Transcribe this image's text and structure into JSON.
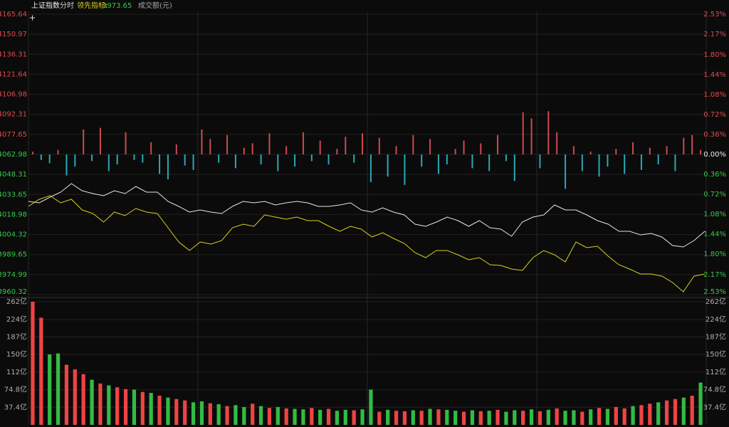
{
  "chart_data": [
    {
      "type": "line",
      "title": "上证指数",
      "period": "分时",
      "indicator_label": "领先指标:",
      "indicator_value": 3973.65,
      "ylim": [
        3960.32,
        4165.64
      ],
      "yticks": [
        4165.64,
        4150.97,
        4136.31,
        4121.64,
        4106.98,
        4092.31,
        4077.65,
        4062.98,
        4048.31,
        4033.65,
        4018.98,
        4004.32,
        3989.65,
        3974.99,
        3960.32
      ],
      "y2lim": [
        -2.53,
        2.53
      ],
      "y2ticks": [
        {
          "value": 2.53,
          "label": "2.53%"
        },
        {
          "value": 2.17,
          "label": "2.17%"
        },
        {
          "value": 1.8,
          "label": "1.80%"
        },
        {
          "value": 1.44,
          "label": "1.44%"
        },
        {
          "value": 1.08,
          "label": "1.08%"
        },
        {
          "value": 0.72,
          "label": "0.72%"
        },
        {
          "value": 0.36,
          "label": "0.36%"
        },
        {
          "value": 0,
          "label": "0.00%"
        },
        {
          "value": -0.36,
          "label": "0.36%"
        },
        {
          "value": -0.72,
          "label": "0.72%"
        },
        {
          "value": -1.08,
          "label": "1.08%"
        },
        {
          "value": -1.44,
          "label": "1.44%"
        },
        {
          "value": -1.8,
          "label": "1.80%"
        },
        {
          "value": -2.17,
          "label": "2.17%"
        },
        {
          "value": -2.53,
          "label": "2.53%"
        }
      ],
      "tick_up_color": "#e5484d",
      "tick_down_color": "#35c94a",
      "grid": true,
      "series": [
        {
          "color": "#e6e6e6",
          "values": [
            4028.59,
            4027.55,
            4031.72,
            4035.36,
            4041.62,
            4036.41,
            4034.32,
            4032.76,
            4036.41,
            4034.32,
            4039.53,
            4035.36,
            4035.36,
            4028.59,
            4024.94,
            4020.77,
            4022.34,
            4020.77,
            4019.73,
            4024.94,
            4028.59,
            4027.55,
            4028.59,
            4025.98,
            4027.55,
            4028.59,
            4027.55,
            4024.94,
            4024.94,
            4025.98,
            4027.55,
            4022.34,
            4020.77,
            4023.9,
            4020.77,
            4018.69,
            4011.91,
            4010.35,
            4013.48,
            4017.12,
            4014.52,
            4010.35,
            4014.52,
            4009.31,
            4008.27,
            4003.05,
            4013.48,
            4017.12,
            4018.69,
            4025.98,
            4022.34,
            4022.34,
            4018.69,
            4014.52,
            4011.91,
            4006.7,
            4006.7,
            4004.1,
            4005.14,
            4002.53,
            3996.28,
            3995.24,
            3999.93,
            4006.7
          ]
        },
        {
          "color": "#d8d21c",
          "values": [
            4024.94,
            4030.15,
            4032.76,
            4027.55,
            4030.15,
            4022.34,
            4019.73,
            4013.48,
            4020.77,
            4018.17,
            4023.38,
            4020.77,
            4019.73,
            4009.31,
            3998.89,
            3992.63,
            3998.89,
            3997.32,
            3999.93,
            4009.31,
            4011.91,
            4010.35,
            4018.69,
            4017.12,
            4015.56,
            4017.12,
            4014.52,
            4014.52,
            4010.35,
            4006.7,
            4010.35,
            4008.27,
            4002.53,
            4005.66,
            4001.49,
            3997.84,
            3991.07,
            3987.42,
            3992.63,
            3992.63,
            3989.51,
            3985.86,
            3987.42,
            3982.21,
            3981.69,
            3979.08,
            3978.04,
            3987.42,
            3992.63,
            3989.51,
            3984.3,
            3998.89,
            3994.72,
            3995.76,
            3988.46,
            3982.21,
            3979.08,
            3975.44,
            3975.44,
            3973.87,
            3969.18,
            3962.41,
            3973.87,
            3975.44
          ]
        },
        {
          "type": "bar",
          "axis": "y2",
          "up_color": "#d0494e",
          "down_color": "#2aa8b8",
          "values": [
            0.05,
            -0.1,
            -0.16,
            0.08,
            -0.38,
            -0.22,
            0.45,
            -0.12,
            0.48,
            -0.3,
            -0.18,
            0.4,
            -0.1,
            -0.15,
            0.22,
            -0.35,
            -0.45,
            0.18,
            -0.2,
            -0.28,
            0.45,
            0.28,
            -0.15,
            0.35,
            -0.25,
            0.12,
            0.2,
            -0.18,
            0.38,
            -0.3,
            0.15,
            -0.22,
            0.4,
            -0.12,
            0.25,
            -0.18,
            0.1,
            0.32,
            -0.15,
            0.38,
            -0.5,
            0.3,
            -0.4,
            0.15,
            -0.55,
            0.35,
            -0.22,
            0.28,
            -0.35,
            -0.18,
            0.1,
            0.25,
            -0.25,
            0.2,
            -0.3,
            0.35,
            -0.12,
            -0.48,
            0.76,
            0.65,
            -0.25,
            0.78,
            0.4,
            -0.62,
            0.15,
            -0.3,
            0.05,
            -0.4,
            -0.22,
            0.1,
            -0.35,
            0.22,
            -0.28,
            0.12,
            -0.18,
            0.15,
            -0.3,
            0.3,
            0.35,
            0.08
          ]
        }
      ]
    },
    {
      "type": "bar",
      "title": "成交额(元)",
      "ylim": [
        0,
        262
      ],
      "yticks": [
        {
          "value": 262,
          "label": "262亿"
        },
        {
          "value": 224,
          "label": "224亿"
        },
        {
          "value": 187,
          "label": "187亿"
        },
        {
          "value": 150,
          "label": "150亿"
        },
        {
          "value": 112,
          "label": "112亿"
        },
        {
          "value": 74.8,
          "label": "74.8亿"
        },
        {
          "value": 37.4,
          "label": "37.4亿"
        }
      ],
      "tick_color": "#b0b0b0",
      "values": [
        262,
        228,
        150,
        152,
        128,
        118,
        108,
        96,
        88,
        84,
        80,
        76,
        75,
        70,
        68,
        62,
        58,
        55,
        52,
        48,
        50,
        46,
        44,
        40,
        42,
        38,
        45,
        40,
        36,
        38,
        35,
        34,
        33,
        36,
        32,
        34,
        30,
        32,
        31,
        33,
        75,
        28,
        32,
        30,
        29,
        31,
        30,
        34,
        33,
        32,
        30,
        28,
        31,
        29,
        30,
        32,
        28,
        31,
        30,
        33,
        29,
        32,
        35,
        30,
        31,
        28,
        33,
        36,
        34,
        38,
        35,
        40,
        42,
        45,
        48,
        52,
        55,
        58,
        62,
        90
      ],
      "colors": [
        "#e44",
        "#e44",
        "#3b4",
        "#3b4",
        "#e44",
        "#e44",
        "#e44",
        "#3b4",
        "#e44",
        "#3b4",
        "#e44",
        "#e44",
        "#3b4",
        "#e44",
        "#3b4",
        "#e44",
        "#3b4",
        "#e44",
        "#e44",
        "#3b4",
        "#3b4",
        "#e44",
        "#3b4",
        "#e44",
        "#3b4",
        "#3b4",
        "#e44",
        "#3b4",
        "#e44",
        "#3b4",
        "#e44",
        "#3b4",
        "#3b4",
        "#e44",
        "#3b4",
        "#e44",
        "#3b4",
        "#3b4",
        "#e44",
        "#3b4",
        "#3b4",
        "#e44",
        "#3b4",
        "#e44",
        "#e44",
        "#3b4",
        "#e44",
        "#3b4",
        "#e44",
        "#3b4",
        "#3b4",
        "#e44",
        "#3b4",
        "#e44",
        "#3b4",
        "#e44",
        "#3b4",
        "#3b4",
        "#e44",
        "#3b4",
        "#e44",
        "#3b4",
        "#e44",
        "#3b4",
        "#3b4",
        "#e44",
        "#3b4",
        "#e44",
        "#3b4",
        "#e44",
        "#e44",
        "#3b4",
        "#e44",
        "#e44",
        "#3b4",
        "#e44",
        "#e44",
        "#3b4",
        "#e44",
        "#3b4"
      ]
    }
  ]
}
